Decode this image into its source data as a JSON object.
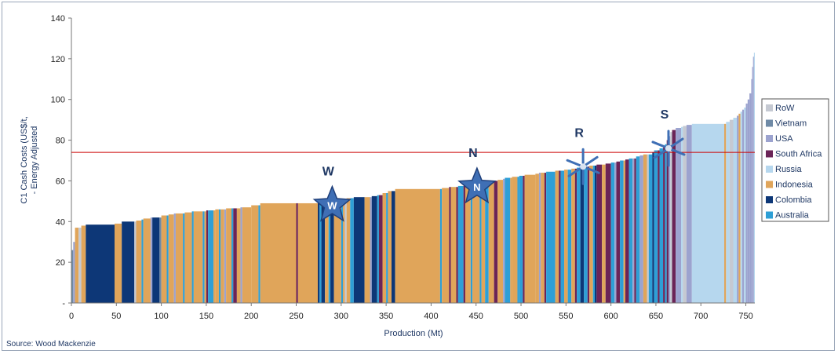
{
  "chart_data": {
    "type": "bar",
    "subtype": "cost-curve",
    "xlabel": "Production (Mt)",
    "ylabel_lines": [
      "C1 Cash Costs (US$/t,",
      "- Energy Adjusted"
    ],
    "xlim": [
      0,
      760
    ],
    "ylim": [
      0,
      140
    ],
    "x_ticks": [
      "0",
      "50",
      "100",
      "150",
      "200",
      "250",
      "300",
      "350",
      "400",
      "450",
      "500",
      "550",
      "600",
      "650",
      "700",
      "750"
    ],
    "y_ticks": [
      "-",
      "20",
      "40",
      "60",
      "80",
      "100",
      "120",
      "140"
    ],
    "reference_line": {
      "y": 74,
      "color": "#cc0000"
    },
    "colors": {
      "RoW": "#c5c9d2",
      "Vietnam": "#6f8aa6",
      "USA": "#9ca3cf",
      "South Africa": "#6b2457",
      "Russia": "#b6d7ee",
      "Indonesia": "#e0a55a",
      "Colombia": "#0d3777",
      "Australia": "#2e9fd6"
    },
    "legend": [
      "RoW",
      "Vietnam",
      "USA",
      "South Africa",
      "Russia",
      "Indonesia",
      "Colombia",
      "Australia"
    ],
    "legend_position": "right",
    "segments": [
      {
        "x0": 0,
        "x1": 2,
        "y": 26,
        "c": "Vietnam"
      },
      {
        "x0": 2,
        "x1": 4,
        "y": 30,
        "c": "USA"
      },
      {
        "x0": 4,
        "x1": 8,
        "y": 37,
        "c": "Indonesia"
      },
      {
        "x0": 8,
        "x1": 11,
        "y": 37,
        "c": "RoW"
      },
      {
        "x0": 11,
        "x1": 16,
        "y": 38,
        "c": "Indonesia"
      },
      {
        "x0": 16,
        "x1": 48,
        "y": 38.5,
        "c": "Colombia"
      },
      {
        "x0": 48,
        "x1": 56,
        "y": 39,
        "c": "Indonesia"
      },
      {
        "x0": 56,
        "x1": 70,
        "y": 40,
        "c": "Colombia"
      },
      {
        "x0": 70,
        "x1": 72,
        "y": 40,
        "c": "RoW"
      },
      {
        "x0": 72,
        "x1": 78,
        "y": 40.5,
        "c": "Indonesia"
      },
      {
        "x0": 78,
        "x1": 80,
        "y": 41,
        "c": "Australia"
      },
      {
        "x0": 80,
        "x1": 88,
        "y": 41.5,
        "c": "Indonesia"
      },
      {
        "x0": 88,
        "x1": 90,
        "y": 42,
        "c": "USA"
      },
      {
        "x0": 90,
        "x1": 98,
        "y": 42,
        "c": "Colombia"
      },
      {
        "x0": 98,
        "x1": 100,
        "y": 42,
        "c": "Vietnam"
      },
      {
        "x0": 100,
        "x1": 106,
        "y": 43,
        "c": "Indonesia"
      },
      {
        "x0": 106,
        "x1": 108,
        "y": 43,
        "c": "Australia"
      },
      {
        "x0": 108,
        "x1": 114,
        "y": 43.5,
        "c": "Indonesia"
      },
      {
        "x0": 114,
        "x1": 116,
        "y": 44,
        "c": "USA"
      },
      {
        "x0": 116,
        "x1": 124,
        "y": 44,
        "c": "Indonesia"
      },
      {
        "x0": 124,
        "x1": 126,
        "y": 44,
        "c": "Australia"
      },
      {
        "x0": 126,
        "x1": 134,
        "y": 44.5,
        "c": "Indonesia"
      },
      {
        "x0": 134,
        "x1": 136,
        "y": 45,
        "c": "Australia"
      },
      {
        "x0": 136,
        "x1": 146,
        "y": 45,
        "c": "Indonesia"
      },
      {
        "x0": 146,
        "x1": 148,
        "y": 45,
        "c": "Australia"
      },
      {
        "x0": 148,
        "x1": 150,
        "y": 45,
        "c": "Indonesia"
      },
      {
        "x0": 150,
        "x1": 152,
        "y": 45.5,
        "c": "South Africa"
      },
      {
        "x0": 152,
        "x1": 158,
        "y": 45.5,
        "c": "Australia"
      },
      {
        "x0": 158,
        "x1": 160,
        "y": 45.5,
        "c": "Indonesia"
      },
      {
        "x0": 160,
        "x1": 164,
        "y": 46,
        "c": "Indonesia"
      },
      {
        "x0": 164,
        "x1": 166,
        "y": 46,
        "c": "Australia"
      },
      {
        "x0": 166,
        "x1": 170,
        "y": 46,
        "c": "Indonesia"
      },
      {
        "x0": 170,
        "x1": 172,
        "y": 46,
        "c": "USA"
      },
      {
        "x0": 172,
        "x1": 178,
        "y": 46.5,
        "c": "Indonesia"
      },
      {
        "x0": 178,
        "x1": 180,
        "y": 46.5,
        "c": "Australia"
      },
      {
        "x0": 180,
        "x1": 184,
        "y": 46.5,
        "c": "South Africa"
      },
      {
        "x0": 184,
        "x1": 188,
        "y": 46.5,
        "c": "Indonesia"
      },
      {
        "x0": 188,
        "x1": 190,
        "y": 47,
        "c": "USA"
      },
      {
        "x0": 190,
        "x1": 200,
        "y": 47,
        "c": "Indonesia"
      },
      {
        "x0": 200,
        "x1": 208,
        "y": 48,
        "c": "Indonesia"
      },
      {
        "x0": 208,
        "x1": 210,
        "y": 48,
        "c": "Australia"
      },
      {
        "x0": 210,
        "x1": 250,
        "y": 49,
        "c": "Indonesia"
      },
      {
        "x0": 250,
        "x1": 252,
        "y": 49,
        "c": "South Africa"
      },
      {
        "x0": 252,
        "x1": 274,
        "y": 49,
        "c": "Indonesia"
      },
      {
        "x0": 274,
        "x1": 276,
        "y": 49.5,
        "c": "Colombia"
      },
      {
        "x0": 276,
        "x1": 278,
        "y": 50,
        "c": "Australia"
      },
      {
        "x0": 278,
        "x1": 282,
        "y": 50,
        "c": "Colombia"
      },
      {
        "x0": 282,
        "x1": 286,
        "y": 50,
        "c": "Indonesia"
      },
      {
        "x0": 286,
        "x1": 288,
        "y": 50.5,
        "c": "Australia"
      },
      {
        "x0": 288,
        "x1": 292,
        "y": 50.5,
        "c": "Colombia"
      },
      {
        "x0": 292,
        "x1": 300,
        "y": 51,
        "c": "Indonesia"
      },
      {
        "x0": 300,
        "x1": 302,
        "y": 51,
        "c": "Australia"
      },
      {
        "x0": 302,
        "x1": 304,
        "y": 51,
        "c": "Indonesia"
      },
      {
        "x0": 304,
        "x1": 306,
        "y": 51,
        "c": "RoW"
      },
      {
        "x0": 306,
        "x1": 310,
        "y": 51.5,
        "c": "Indonesia"
      },
      {
        "x0": 310,
        "x1": 314,
        "y": 51.5,
        "c": "Australia"
      },
      {
        "x0": 314,
        "x1": 326,
        "y": 52,
        "c": "Colombia"
      },
      {
        "x0": 326,
        "x1": 332,
        "y": 52,
        "c": "Indonesia"
      },
      {
        "x0": 332,
        "x1": 334,
        "y": 52,
        "c": "USA"
      },
      {
        "x0": 334,
        "x1": 340,
        "y": 52.5,
        "c": "Colombia"
      },
      {
        "x0": 340,
        "x1": 342,
        "y": 53,
        "c": "Australia"
      },
      {
        "x0": 342,
        "x1": 346,
        "y": 53,
        "c": "South Africa"
      },
      {
        "x0": 346,
        "x1": 350,
        "y": 54,
        "c": "Indonesia"
      },
      {
        "x0": 350,
        "x1": 352,
        "y": 54,
        "c": "Australia"
      },
      {
        "x0": 352,
        "x1": 356,
        "y": 55,
        "c": "Indonesia"
      },
      {
        "x0": 356,
        "x1": 360,
        "y": 55,
        "c": "Colombia"
      },
      {
        "x0": 360,
        "x1": 410,
        "y": 56,
        "c": "Indonesia"
      },
      {
        "x0": 410,
        "x1": 412,
        "y": 56,
        "c": "Australia"
      },
      {
        "x0": 412,
        "x1": 420,
        "y": 56.5,
        "c": "Indonesia"
      },
      {
        "x0": 420,
        "x1": 422,
        "y": 57,
        "c": "South Africa"
      },
      {
        "x0": 422,
        "x1": 428,
        "y": 57,
        "c": "Indonesia"
      },
      {
        "x0": 428,
        "x1": 430,
        "y": 57,
        "c": "South Africa"
      },
      {
        "x0": 430,
        "x1": 436,
        "y": 57.5,
        "c": "Australia"
      },
      {
        "x0": 436,
        "x1": 438,
        "y": 57.5,
        "c": "South Africa"
      },
      {
        "x0": 438,
        "x1": 444,
        "y": 58,
        "c": "Indonesia"
      },
      {
        "x0": 444,
        "x1": 446,
        "y": 58,
        "c": "Australia"
      },
      {
        "x0": 446,
        "x1": 454,
        "y": 58.5,
        "c": "Indonesia"
      },
      {
        "x0": 454,
        "x1": 456,
        "y": 59,
        "c": "Australia"
      },
      {
        "x0": 456,
        "x1": 460,
        "y": 59,
        "c": "Indonesia"
      },
      {
        "x0": 460,
        "x1": 464,
        "y": 59.5,
        "c": "Australia"
      },
      {
        "x0": 464,
        "x1": 470,
        "y": 59.5,
        "c": "Indonesia"
      },
      {
        "x0": 470,
        "x1": 474,
        "y": 60,
        "c": "South Africa"
      },
      {
        "x0": 474,
        "x1": 480,
        "y": 60.5,
        "c": "Indonesia"
      },
      {
        "x0": 480,
        "x1": 482,
        "y": 61,
        "c": "USA"
      },
      {
        "x0": 482,
        "x1": 488,
        "y": 61.5,
        "c": "Australia"
      },
      {
        "x0": 488,
        "x1": 490,
        "y": 61.5,
        "c": "Indonesia"
      },
      {
        "x0": 490,
        "x1": 496,
        "y": 62,
        "c": "Indonesia"
      },
      {
        "x0": 496,
        "x1": 498,
        "y": 62,
        "c": "Australia"
      },
      {
        "x0": 498,
        "x1": 502,
        "y": 62.5,
        "c": "Australia"
      },
      {
        "x0": 502,
        "x1": 504,
        "y": 62.5,
        "c": "South Africa"
      },
      {
        "x0": 504,
        "x1": 516,
        "y": 63,
        "c": "Indonesia"
      },
      {
        "x0": 516,
        "x1": 520,
        "y": 63.5,
        "c": "Indonesia"
      },
      {
        "x0": 520,
        "x1": 522,
        "y": 64,
        "c": "USA"
      },
      {
        "x0": 522,
        "x1": 526,
        "y": 64,
        "c": "Indonesia"
      },
      {
        "x0": 526,
        "x1": 528,
        "y": 64,
        "c": "South Africa"
      },
      {
        "x0": 528,
        "x1": 538,
        "y": 64.5,
        "c": "Australia"
      },
      {
        "x0": 538,
        "x1": 542,
        "y": 65,
        "c": "Indonesia"
      },
      {
        "x0": 542,
        "x1": 544,
        "y": 65,
        "c": "South Africa"
      },
      {
        "x0": 544,
        "x1": 548,
        "y": 65,
        "c": "Australia"
      },
      {
        "x0": 548,
        "x1": 552,
        "y": 65.5,
        "c": "Indonesia"
      },
      {
        "x0": 552,
        "x1": 556,
        "y": 65.5,
        "c": "Australia"
      },
      {
        "x0": 556,
        "x1": 560,
        "y": 66,
        "c": "Indonesia"
      },
      {
        "x0": 560,
        "x1": 562,
        "y": 66,
        "c": "South Africa"
      },
      {
        "x0": 562,
        "x1": 566,
        "y": 66.5,
        "c": "Australia"
      },
      {
        "x0": 566,
        "x1": 570,
        "y": 67,
        "c": "Colombia"
      },
      {
        "x0": 570,
        "x1": 574,
        "y": 67,
        "c": "Australia"
      },
      {
        "x0": 574,
        "x1": 576,
        "y": 67,
        "c": "South Africa"
      },
      {
        "x0": 576,
        "x1": 580,
        "y": 67.5,
        "c": "Indonesia"
      },
      {
        "x0": 580,
        "x1": 582,
        "y": 67.5,
        "c": "Australia"
      },
      {
        "x0": 582,
        "x1": 584,
        "y": 67.5,
        "c": "Colombia"
      },
      {
        "x0": 584,
        "x1": 590,
        "y": 68,
        "c": "South Africa"
      },
      {
        "x0": 590,
        "x1": 594,
        "y": 68,
        "c": "Indonesia"
      },
      {
        "x0": 594,
        "x1": 600,
        "y": 68.5,
        "c": "South Africa"
      },
      {
        "x0": 600,
        "x1": 604,
        "y": 69,
        "c": "Australia"
      },
      {
        "x0": 604,
        "x1": 606,
        "y": 69,
        "c": "USA"
      },
      {
        "x0": 606,
        "x1": 610,
        "y": 69.5,
        "c": "South Africa"
      },
      {
        "x0": 610,
        "x1": 614,
        "y": 70,
        "c": "Australia"
      },
      {
        "x0": 614,
        "x1": 616,
        "y": 70,
        "c": "Indonesia"
      },
      {
        "x0": 616,
        "x1": 620,
        "y": 70.5,
        "c": "South Africa"
      },
      {
        "x0": 620,
        "x1": 624,
        "y": 71,
        "c": "Australia"
      },
      {
        "x0": 624,
        "x1": 626,
        "y": 71,
        "c": "USA"
      },
      {
        "x0": 626,
        "x1": 628,
        "y": 71,
        "c": "South Africa"
      },
      {
        "x0": 628,
        "x1": 632,
        "y": 72,
        "c": "Australia"
      },
      {
        "x0": 632,
        "x1": 636,
        "y": 72.5,
        "c": "USA"
      },
      {
        "x0": 636,
        "x1": 640,
        "y": 73,
        "c": "Indonesia"
      },
      {
        "x0": 640,
        "x1": 642,
        "y": 73,
        "c": "RoW"
      },
      {
        "x0": 642,
        "x1": 646,
        "y": 73,
        "c": "Australia"
      },
      {
        "x0": 646,
        "x1": 648,
        "y": 74,
        "c": "Colombia"
      },
      {
        "x0": 648,
        "x1": 652,
        "y": 75,
        "c": "Australia"
      },
      {
        "x0": 652,
        "x1": 654,
        "y": 75,
        "c": "South Africa"
      },
      {
        "x0": 654,
        "x1": 658,
        "y": 76,
        "c": "Australia"
      },
      {
        "x0": 658,
        "x1": 660,
        "y": 76.5,
        "c": "South Africa"
      },
      {
        "x0": 660,
        "x1": 662,
        "y": 78,
        "c": "Australia"
      },
      {
        "x0": 662,
        "x1": 664,
        "y": 80,
        "c": "South Africa"
      },
      {
        "x0": 664,
        "x1": 666,
        "y": 82,
        "c": "USA"
      },
      {
        "x0": 666,
        "x1": 668,
        "y": 84,
        "c": "RoW"
      },
      {
        "x0": 668,
        "x1": 672,
        "y": 85,
        "c": "South Africa"
      },
      {
        "x0": 672,
        "x1": 678,
        "y": 86,
        "c": "USA"
      },
      {
        "x0": 678,
        "x1": 680,
        "y": 86.5,
        "c": "Russia"
      },
      {
        "x0": 680,
        "x1": 684,
        "y": 87,
        "c": "RoW"
      },
      {
        "x0": 684,
        "x1": 690,
        "y": 87.5,
        "c": "USA"
      },
      {
        "x0": 690,
        "x1": 726,
        "y": 88,
        "c": "Russia"
      },
      {
        "x0": 726,
        "x1": 728,
        "y": 88,
        "c": "Indonesia"
      },
      {
        "x0": 728,
        "x1": 732,
        "y": 89,
        "c": "Russia"
      },
      {
        "x0": 732,
        "x1": 736,
        "y": 90,
        "c": "RoW"
      },
      {
        "x0": 736,
        "x1": 740,
        "y": 91,
        "c": "Russia"
      },
      {
        "x0": 740,
        "x1": 742,
        "y": 92,
        "c": "USA"
      },
      {
        "x0": 742,
        "x1": 744,
        "y": 93,
        "c": "Indonesia"
      },
      {
        "x0": 744,
        "x1": 746,
        "y": 94,
        "c": "Russia"
      },
      {
        "x0": 746,
        "x1": 748,
        "y": 95,
        "c": "USA"
      },
      {
        "x0": 748,
        "x1": 750,
        "y": 96,
        "c": "Russia"
      },
      {
        "x0": 750,
        "x1": 752,
        "y": 98,
        "c": "USA"
      },
      {
        "x0": 752,
        "x1": 754,
        "y": 100,
        "c": "USA"
      },
      {
        "x0": 754,
        "x1": 756,
        "y": 103,
        "c": "USA"
      },
      {
        "x0": 756,
        "x1": 757,
        "y": 110,
        "c": "USA"
      },
      {
        "x0": 757,
        "x1": 758,
        "y": 116,
        "c": "USA"
      },
      {
        "x0": 758,
        "x1": 759,
        "y": 121,
        "c": "USA"
      },
      {
        "x0": 759,
        "x1": 760,
        "y": 123,
        "c": "Russia"
      }
    ],
    "markers": [
      {
        "label": "W",
        "inner": "W",
        "type": "star",
        "x": 290,
        "y": 48
      },
      {
        "label": "N",
        "inner": "N",
        "type": "star",
        "x": 451,
        "y": 57
      },
      {
        "label": "R",
        "inner": "",
        "type": "burst",
        "x": 569,
        "y": 67
      },
      {
        "label": "S",
        "inner": "",
        "type": "burst",
        "x": 664,
        "y": 76
      }
    ]
  },
  "source_text": "Source: Wood Mackenzie"
}
